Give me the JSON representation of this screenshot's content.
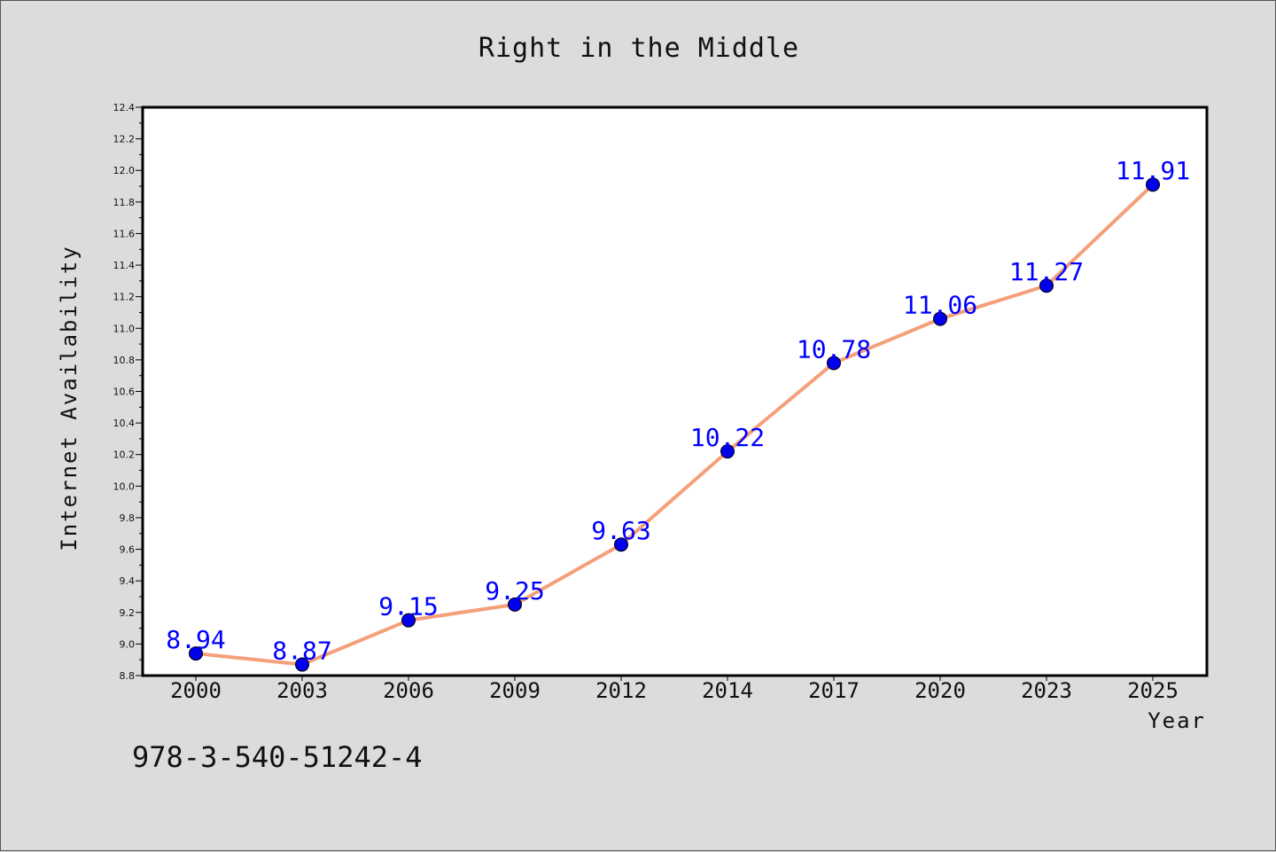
{
  "chart_data": {
    "type": "line",
    "title": "Right in the Middle",
    "xlabel": "Year",
    "ylabel": "Internet Availability",
    "categories": [
      "2000",
      "2003",
      "2006",
      "2009",
      "2012",
      "2014",
      "2017",
      "2020",
      "2023",
      "2025"
    ],
    "series": [
      {
        "values": [
          8.94,
          8.87,
          9.15,
          9.25,
          9.63,
          10.22,
          10.78,
          11.06,
          11.27,
          11.91
        ],
        "data_labels": [
          "8.94",
          "8.87",
          "9.15",
          "9.25",
          "9.63",
          "10.22",
          "10.78",
          "11.06",
          "11.27",
          "11.91"
        ],
        "line_color": "#f4a07a",
        "marker_color": "#0000ee"
      }
    ],
    "ylim": [
      8.8,
      12.4
    ],
    "yticks": [
      "8.8",
      "9.0",
      "9.2",
      "9.4",
      "9.6",
      "9.8",
      "10.0",
      "10.2",
      "10.4",
      "10.6",
      "10.8",
      "11.0",
      "11.2",
      "11.4",
      "11.6",
      "11.8",
      "12.0",
      "12.2",
      "12.4"
    ],
    "grid": false,
    "legend": "none",
    "annotation": "978-3-540-51242-4",
    "colors": {
      "background": "#dcdcdc",
      "plot_background": "#ffffff",
      "data_label": "#0000ff"
    }
  }
}
